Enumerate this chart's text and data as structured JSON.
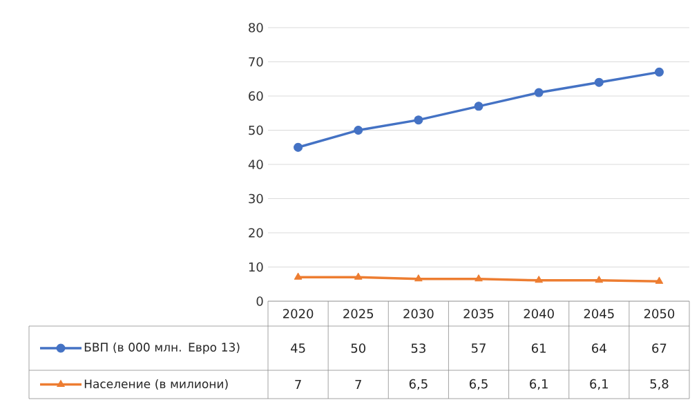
{
  "chart_data": {
    "type": "line",
    "categories": [
      "2020",
      "2025",
      "2030",
      "2035",
      "2040",
      "2045",
      "2050"
    ],
    "series": [
      {
        "name": "БВП (в 000 млн. Евро 13)",
        "color": "#4472c4",
        "marker": "circle",
        "values": [
          45,
          50,
          53,
          57,
          61,
          64,
          67
        ],
        "value_labels": [
          "45",
          "50",
          "53",
          "57",
          "61",
          "64",
          "67"
        ]
      },
      {
        "name": "Население (в милиони)",
        "color": "#ed7d31",
        "marker": "triangle",
        "values": [
          7,
          7,
          6.5,
          6.5,
          6.1,
          6.1,
          5.8
        ],
        "value_labels": [
          "7",
          "7",
          "6,5",
          "6,5",
          "6,1",
          "6,1",
          "5,8"
        ]
      }
    ],
    "ylim": [
      0,
      80
    ],
    "yticks": [
      0,
      10,
      20,
      30,
      40,
      50,
      60,
      70,
      80
    ],
    "grid": "y",
    "line_style": "solid",
    "legend": "bottom left"
  }
}
